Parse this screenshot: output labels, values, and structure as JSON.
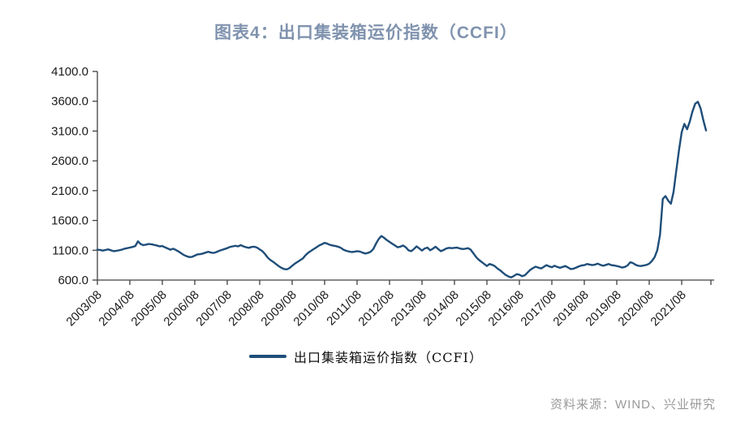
{
  "header": {
    "title": "图表4：出口集装箱运价指数（CCFI）",
    "title_color": "#8093ae"
  },
  "legend": {
    "label": "出口集装箱运价指数（CCFI）",
    "line_color": "#1f4e79"
  },
  "footer": {
    "source": "资料来源：WIND、兴业研究",
    "source_color": "#999999"
  },
  "chart_data": {
    "type": "line",
    "title": "图表4：出口集装箱运价指数（CCFI）",
    "xlabel": "",
    "ylabel": "",
    "ylim": [
      600,
      4100
    ],
    "grid": false,
    "legend_position": "bottom",
    "axis_color": "#404040",
    "tick_label_color": "#1a1a1a",
    "y_ticks": [
      600,
      1100,
      1600,
      2100,
      2600,
      3100,
      3600,
      4100
    ],
    "y_tick_labels": [
      "600.0",
      "1100.0",
      "1600.0",
      "2100.0",
      "2600.0",
      "3100.0",
      "3600.0",
      "4100.0"
    ],
    "x_tick_labels": [
      "2003/08",
      "2004/08",
      "2005/08",
      "2006/08",
      "2007/08",
      "2008/08",
      "2009/08",
      "2010/08",
      "2011/08",
      "2012/08",
      "2013/08",
      "2014/08",
      "2015/08",
      "2016/08",
      "2017/08",
      "2018/08",
      "2019/08",
      "2020/08",
      "2021/08"
    ],
    "series": [
      {
        "name": "出口集装箱运价指数（CCFI）",
        "color": "#1f4e79",
        "start": "2003/08",
        "frequency": "monthly",
        "values": [
          1110,
          1105,
          1095,
          1105,
          1115,
          1100,
          1085,
          1090,
          1100,
          1110,
          1125,
          1135,
          1145,
          1155,
          1170,
          1250,
          1205,
          1185,
          1195,
          1205,
          1200,
          1190,
          1180,
          1165,
          1170,
          1150,
          1130,
          1110,
          1125,
          1105,
          1080,
          1050,
          1020,
          1000,
          985,
          990,
          1010,
          1030,
          1035,
          1045,
          1060,
          1075,
          1060,
          1055,
          1070,
          1090,
          1105,
          1120,
          1135,
          1155,
          1165,
          1175,
          1165,
          1185,
          1165,
          1150,
          1140,
          1155,
          1160,
          1145,
          1115,
          1085,
          1035,
          975,
          935,
          905,
          870,
          835,
          805,
          785,
          780,
          800,
          840,
          875,
          905,
          935,
          965,
          1020,
          1060,
          1090,
          1120,
          1150,
          1180,
          1200,
          1225,
          1210,
          1190,
          1180,
          1170,
          1160,
          1140,
          1110,
          1090,
          1080,
          1070,
          1075,
          1085,
          1080,
          1060,
          1045,
          1055,
          1075,
          1120,
          1210,
          1290,
          1340,
          1310,
          1270,
          1240,
          1210,
          1180,
          1150,
          1160,
          1180,
          1150,
          1100,
          1085,
          1120,
          1165,
          1130,
          1095,
          1130,
          1145,
          1100,
          1125,
          1160,
          1120,
          1085,
          1105,
          1130,
          1140,
          1135,
          1140,
          1145,
          1130,
          1120,
          1125,
          1135,
          1110,
          1050,
          985,
          940,
          905,
          870,
          835,
          870,
          855,
          830,
          790,
          760,
          720,
          685,
          660,
          645,
          670,
          700,
          690,
          665,
          680,
          725,
          770,
          800,
          825,
          810,
          795,
          820,
          850,
          830,
          815,
          840,
          820,
          805,
          820,
          835,
          810,
          785,
          790,
          810,
          830,
          845,
          850,
          870,
          860,
          850,
          860,
          875,
          855,
          840,
          855,
          870,
          850,
          845,
          835,
          825,
          810,
          820,
          845,
          900,
          885,
          855,
          840,
          835,
          845,
          855,
          875,
          920,
          985,
          1105,
          1360,
          1960,
          2010,
          1935,
          1880,
          2080,
          2430,
          2780,
          3080,
          3220,
          3130,
          3260,
          3430,
          3560,
          3590,
          3480,
          3280,
          3110
        ]
      }
    ]
  }
}
